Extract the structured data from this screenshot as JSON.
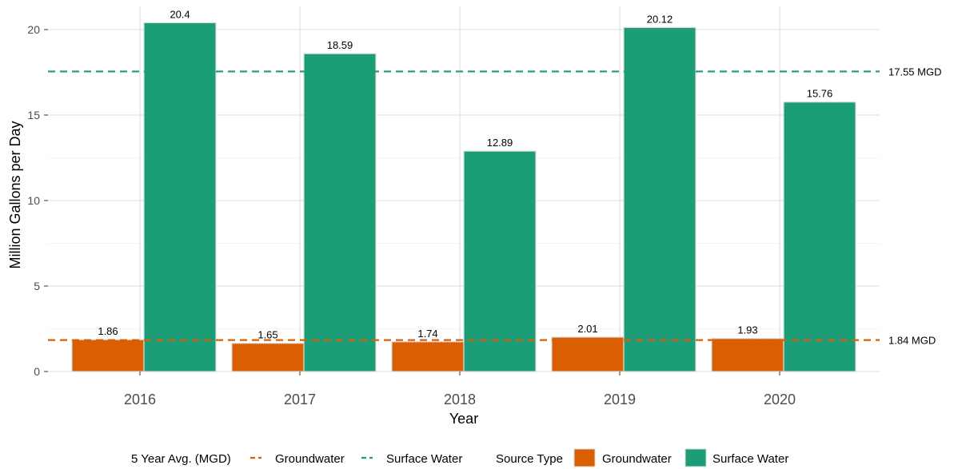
{
  "chart_data": {
    "type": "bar",
    "xlabel": "Year",
    "ylabel": "Million Gallons per Day",
    "ylim": [
      0,
      21
    ],
    "yticks": [
      0,
      5,
      10,
      15,
      20
    ],
    "grid": true,
    "categories": [
      "2016",
      "2017",
      "2018",
      "2019",
      "2020"
    ],
    "series": [
      {
        "name": "Groundwater",
        "color": "#d95f02",
        "values": [
          1.86,
          1.65,
          1.74,
          2.01,
          1.93
        ],
        "labels": [
          "1.86",
          "1.65",
          "1.74",
          "2.01",
          "1.93"
        ]
      },
      {
        "name": "Surface Water",
        "color": "#1b9e77",
        "values": [
          20.4,
          18.59,
          12.89,
          20.12,
          15.76
        ],
        "labels": [
          "20.4",
          "18.59",
          "12.89",
          "20.12",
          "15.76"
        ]
      }
    ],
    "reference_lines": [
      {
        "name": "Groundwater",
        "value": 1.84,
        "label": "1.84  MGD",
        "color": "#d95f02",
        "style": "dashed"
      },
      {
        "name": "Surface Water",
        "value": 17.55,
        "label": "17.55  MGD",
        "color": "#1b9e77",
        "style": "dashed"
      }
    ],
    "legend": {
      "position": "bottom",
      "avg_title": "5 Year Avg. (MGD)",
      "avg_items": [
        "Groundwater",
        "Surface Water"
      ],
      "source_title": "Source Type",
      "source_items": [
        "Groundwater",
        "Surface Water"
      ]
    }
  }
}
